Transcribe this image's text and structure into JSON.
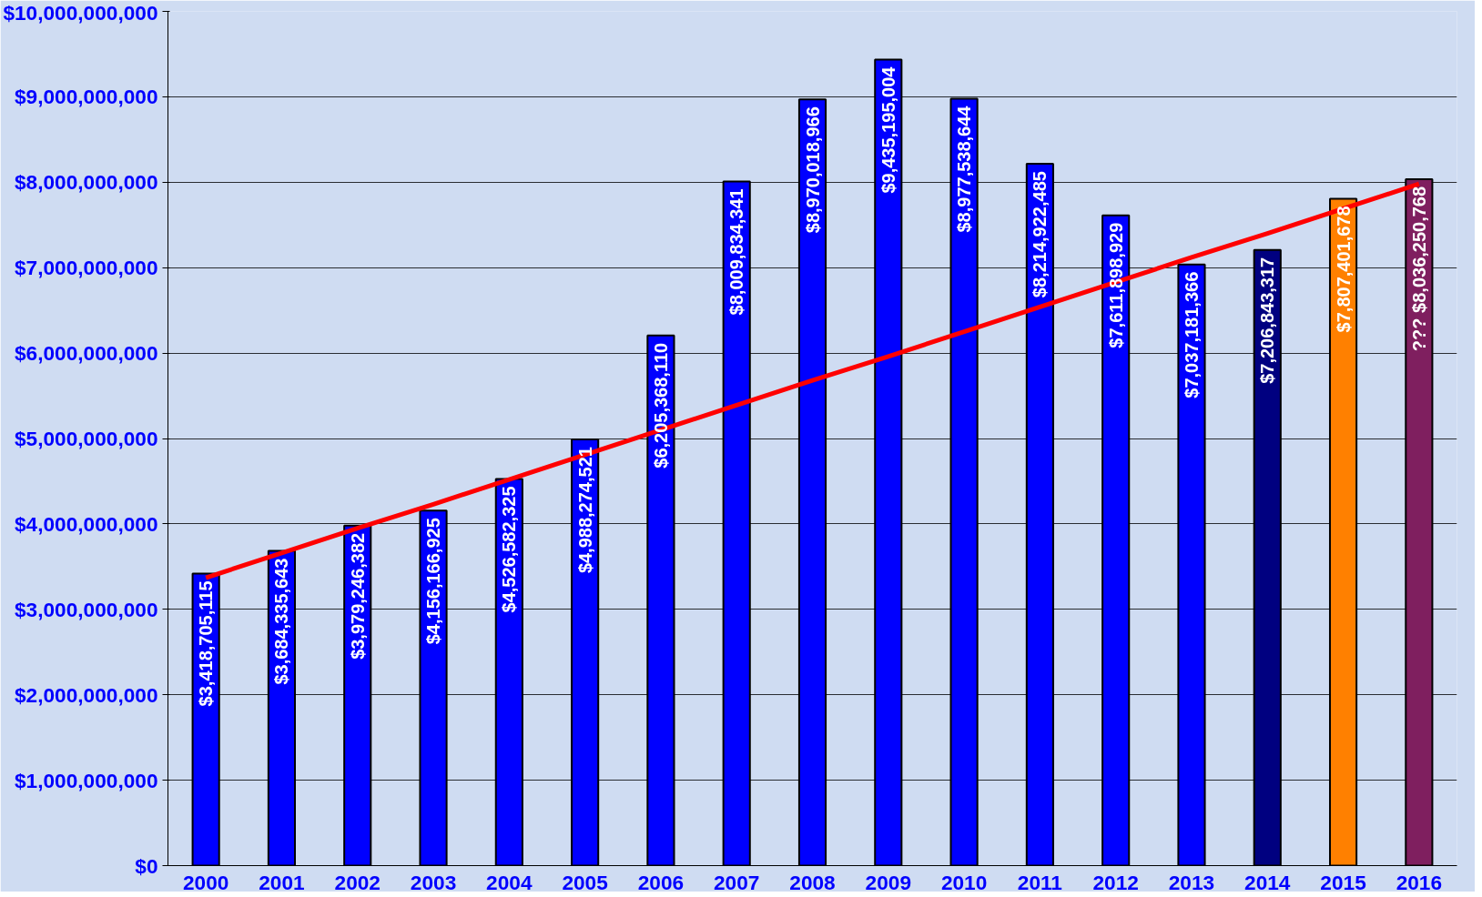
{
  "chart_data": {
    "type": "bar",
    "categories": [
      "2000",
      "2001",
      "2002",
      "2003",
      "2004",
      "2005",
      "2006",
      "2007",
      "2008",
      "2009",
      "2010",
      "2011",
      "2012",
      "2013",
      "2014",
      "2015",
      "2016"
    ],
    "values": [
      3418705115,
      3684335643,
      3979246382,
      4156166925,
      4526582325,
      4988274521,
      6205368110,
      8009834341,
      8970018966,
      9435195004,
      8977538644,
      8214922485,
      7611898929,
      7037181366,
      7206843317,
      7807401678,
      8036250768
    ],
    "colors": [
      "#0000ff",
      "#0000ff",
      "#0000ff",
      "#0000ff",
      "#0000ff",
      "#0000ff",
      "#0000ff",
      "#0000ff",
      "#0000ff",
      "#0000ff",
      "#0000ff",
      "#0000ff",
      "#0000ff",
      "#0000ff",
      "#000080",
      "#ff8000",
      "#7f1f5f"
    ],
    "value_labels": [
      "$3,418,705,115",
      "$3,684,335,643",
      "$3,979,246,382",
      "$4,156,166,925",
      "$4,526,582,325",
      "$4,988,274,521",
      "$6,205,368,110",
      "$8,009,834,341",
      "$8,970,018,966",
      "$9,435,195,004",
      "$8,977,538,644",
      "$8,214,922,485",
      "$7,611,898,929",
      "$7,037,181,366",
      "$7,206,843,317",
      "$7,807,401,678",
      "??? $8,036,250,768"
    ],
    "series": [
      {
        "type": "line",
        "color": "#ff0000",
        "values": [
          3370000000,
          3660000000,
          3950000000,
          4230000000,
          4520000000,
          4810000000,
          5100000000,
          5390000000,
          5680000000,
          5960000000,
          6250000000,
          6540000000,
          6830000000,
          7120000000,
          7400000000,
          7690000000,
          7980000000
        ]
      }
    ],
    "ylim": [
      0,
      10000000000
    ],
    "yticks": [
      {
        "value": 0,
        "label": "$0"
      },
      {
        "value": 1000000000,
        "label": "$1,000,000,000"
      },
      {
        "value": 2000000000,
        "label": "$2,000,000,000"
      },
      {
        "value": 3000000000,
        "label": "$3,000,000,000"
      },
      {
        "value": 4000000000,
        "label": "$4,000,000,000"
      },
      {
        "value": 5000000000,
        "label": "$5,000,000,000"
      },
      {
        "value": 6000000000,
        "label": "$6,000,000,000"
      },
      {
        "value": 7000000000,
        "label": "$7,000,000,000"
      },
      {
        "value": 8000000000,
        "label": "$8,000,000,000"
      },
      {
        "value": 9000000000,
        "label": "$9,000,000,000"
      },
      {
        "value": 10000000000,
        "label": "$10,000,000,000"
      }
    ],
    "grid": "y"
  }
}
